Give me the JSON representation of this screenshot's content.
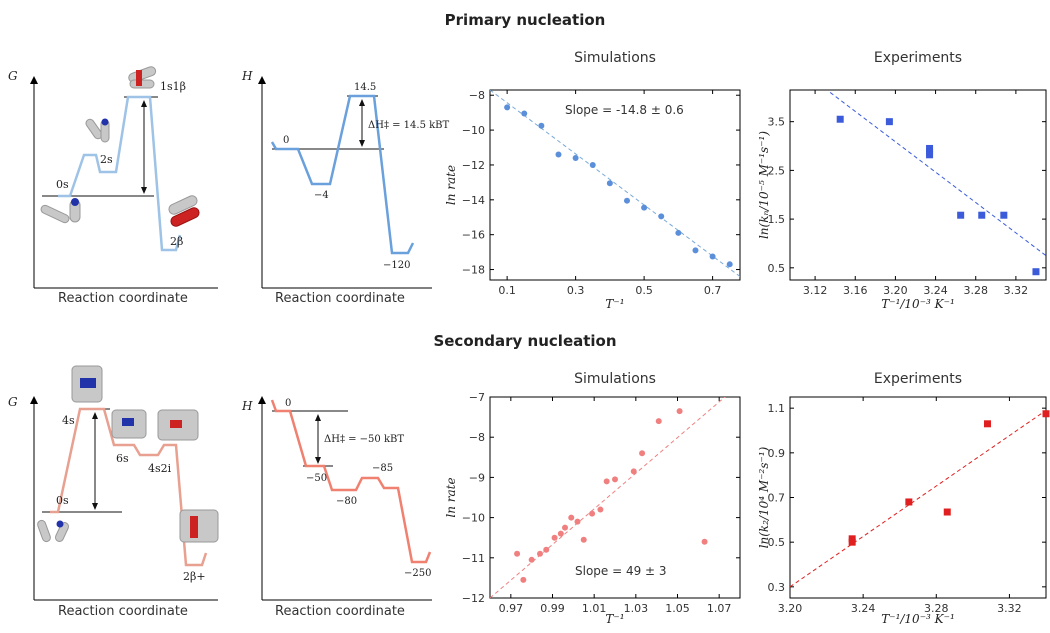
{
  "rows": {
    "primary_title": "Primary nucleation",
    "secondary_title": "Secondary nucleation"
  },
  "energy_labels": {
    "g_axis": "G",
    "h_axis": "H",
    "reaction_coordinate": "Reaction coordinate",
    "primary_g": {
      "s0": "0s",
      "s2": "2s",
      "ts": "1s1β",
      "prod": "2β"
    },
    "primary_h": {
      "zero": "0",
      "min": "−4",
      "top": "14.5",
      "end": "−120",
      "barrier": "ΔH‡ = 14.5 kBT"
    },
    "secondary_g": {
      "s0": "0s",
      "s4": "4s",
      "s6": "6s",
      "s42i": "4s2i",
      "prod": "2β+"
    },
    "secondary_h": {
      "zero": "0",
      "m50": "−50",
      "m80": "−80",
      "m85": "−85",
      "end": "−250",
      "barrier": "ΔH‡ = −50 kBT"
    }
  },
  "colors": {
    "primary": "#5b8fd9",
    "primary_light": "#9ec3e6",
    "secondary": "#f08070",
    "secondary_light": "#e8a090",
    "exp_primary": "#3b5bdb",
    "exp_secondary": "#e02020"
  },
  "chart_data": [
    {
      "id": "primary-sim",
      "type": "scatter",
      "title": "Simulations",
      "xlabel": "T⁻¹",
      "ylabel": "ln rate",
      "xlim": [
        0.05,
        0.78
      ],
      "ylim": [
        -18.6,
        -7.7
      ],
      "xticks": [
        0.1,
        0.3,
        0.5,
        0.7
      ],
      "yticks": [
        -8,
        -10,
        -12,
        -14,
        -16,
        -18
      ],
      "annotation": "Slope = -14.8 ± 0.6",
      "x": [
        0.1,
        0.15,
        0.2,
        0.25,
        0.3,
        0.35,
        0.4,
        0.45,
        0.5,
        0.55,
        0.6,
        0.65,
        0.7,
        0.75
      ],
      "y": [
        -8.7,
        -9.05,
        -9.75,
        -11.4,
        -11.6,
        -12.0,
        -13.05,
        -14.05,
        -14.45,
        -14.95,
        -15.9,
        -16.9,
        -17.25,
        -17.7
      ],
      "fit": [
        [
          0.05,
          -7.7
        ],
        [
          0.78,
          -18.4
        ]
      ]
    },
    {
      "id": "primary-exp",
      "type": "scatter",
      "title": "Experiments",
      "xlabel": "T⁻¹/10⁻³ K⁻¹",
      "ylabel": "ln(kₙ/10⁻⁵ M⁻¹s⁻¹)",
      "xlim": [
        3.095,
        3.35
      ],
      "ylim": [
        0.25,
        4.15
      ],
      "xticks": [
        3.12,
        3.16,
        3.2,
        3.24,
        3.28,
        3.32
      ],
      "xticklabels": [
        "3.12",
        "3.16",
        "3.20",
        "3.24",
        "3.28",
        "3.32"
      ],
      "yticks": [
        0.5,
        1.5,
        2.5,
        3.5
      ],
      "x": [
        3.145,
        3.194,
        3.234,
        3.234,
        3.234,
        3.265,
        3.286,
        3.308,
        3.34
      ],
      "y": [
        3.55,
        3.5,
        2.95,
        2.88,
        2.82,
        1.58,
        1.58,
        1.58,
        0.42
      ],
      "fit": [
        [
          3.135,
          4.1
        ],
        [
          3.35,
          0.75
        ]
      ]
    },
    {
      "id": "secondary-sim",
      "type": "scatter",
      "title": "Simulations",
      "xlabel": "T⁻¹",
      "ylabel": "ln rate",
      "xlim": [
        0.96,
        1.08
      ],
      "ylim": [
        -12.0,
        -7.0
      ],
      "xticks": [
        0.97,
        0.99,
        1.01,
        1.03,
        1.05,
        1.07
      ],
      "xticklabels": [
        "0.97",
        "0.99",
        "1.01",
        "1.03",
        "1.05",
        "1.07"
      ],
      "yticks": [
        -7,
        -8,
        -9,
        -10,
        -11,
        -12
      ],
      "annotation": "Slope = 49 ± 3",
      "x": [
        0.973,
        0.976,
        0.98,
        0.984,
        0.987,
        0.991,
        0.994,
        0.996,
        0.999,
        1.002,
        1.005,
        1.009,
        1.013,
        1.016,
        1.02,
        1.029,
        1.033,
        1.041,
        1.051,
        1.063
      ],
      "y": [
        -10.9,
        -11.55,
        -11.05,
        -10.9,
        -10.8,
        -10.5,
        -10.4,
        -10.25,
        -10.0,
        -10.1,
        -10.55,
        -9.9,
        -9.8,
        -9.1,
        -9.05,
        -8.85,
        -8.4,
        -7.6,
        -7.35,
        -10.6
      ],
      "fit": [
        [
          0.96,
          -12.0
        ],
        [
          1.075,
          -6.9
        ]
      ]
    },
    {
      "id": "secondary-exp",
      "type": "scatter",
      "title": "Experiments",
      "xlabel": "T⁻¹/10⁻³ K⁻¹",
      "ylabel": "ln(k₂/10⁴ M⁻²s⁻¹)",
      "xlim": [
        3.2,
        3.34
      ],
      "ylim": [
        0.25,
        1.15
      ],
      "xticks": [
        3.2,
        3.24,
        3.28,
        3.32
      ],
      "xticklabels": [
        "3.20",
        "3.24",
        "3.28",
        "3.32"
      ],
      "yticks": [
        0.3,
        0.5,
        0.7,
        0.9,
        1.1
      ],
      "x": [
        3.234,
        3.234,
        3.265,
        3.286,
        3.308,
        3.34
      ],
      "y": [
        0.515,
        0.5,
        0.68,
        0.635,
        1.03,
        1.075
      ],
      "fit": [
        [
          3.2,
          0.3
        ],
        [
          3.34,
          1.09
        ]
      ]
    }
  ]
}
